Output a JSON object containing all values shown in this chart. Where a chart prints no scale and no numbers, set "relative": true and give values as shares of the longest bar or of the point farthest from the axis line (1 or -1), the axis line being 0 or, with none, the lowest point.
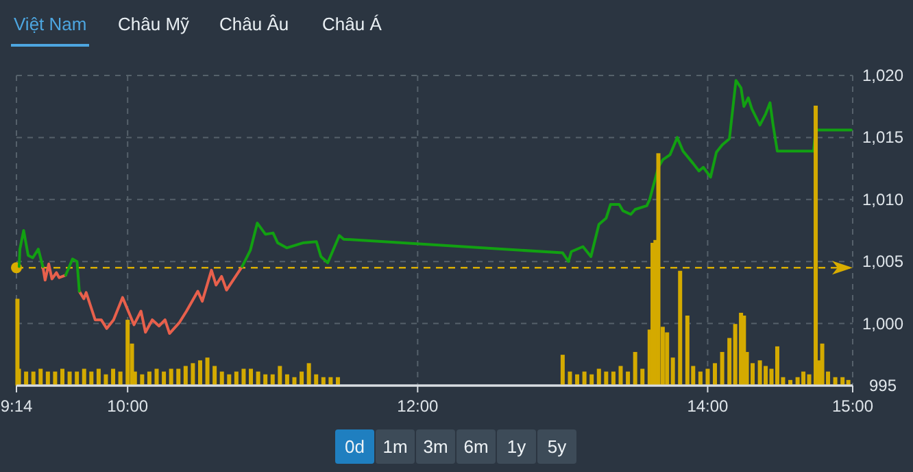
{
  "chart_data": [
    {
      "type": "other",
      "categories": [
        "Việt Nam",
        "Châu Mỹ",
        "Châu Âu",
        "Châu Á"
      ]
    },
    {
      "type": "line",
      "xlim": [
        9.2333,
        15
      ],
      "ylim": [
        995,
        1020
      ],
      "grid": true,
      "xticks": [
        {
          "value": 9.2333,
          "label": "9:14"
        },
        {
          "value": 10,
          "label": "10:00"
        },
        {
          "value": 12,
          "label": "12:00"
        },
        {
          "value": 14,
          "label": "14:00"
        },
        {
          "value": 15,
          "label": "15:00"
        }
      ],
      "yticks": [
        995,
        {
          "value": 1000,
          "label": "1,000"
        },
        {
          "value": 1005,
          "label": "1,005"
        },
        {
          "value": 1010,
          "label": "1,010"
        },
        {
          "value": 1015,
          "label": "1,015"
        },
        {
          "value": 1020,
          "label": "1,020"
        }
      ],
      "ref_lines": [
        {
          "axis": "y",
          "value": 1004.5,
          "color": "#d9ad00",
          "line_style": "dashed"
        }
      ],
      "x": [
        9.252,
        9.257,
        9.283,
        9.314,
        9.346,
        9.384,
        9.415,
        9.431,
        9.456,
        9.478,
        9.509,
        9.528,
        9.573,
        9.62,
        9.651,
        9.667,
        9.698,
        9.714,
        9.776,
        9.818,
        9.856,
        9.903,
        9.965,
        10.044,
        10.092,
        10.123,
        10.17,
        10.217,
        10.258,
        10.289,
        10.358,
        10.406,
        10.484,
        10.515,
        10.578,
        10.61,
        10.648,
        10.682,
        10.79,
        10.846,
        10.894,
        10.95,
        11.003,
        11.035,
        11.097,
        11.208,
        11.302,
        11.333,
        11.38,
        11.46,
        11.49,
        13.0,
        13.04,
        13.06,
        13.14,
        13.195,
        13.25,
        13.3,
        13.33,
        13.39,
        13.415,
        13.47,
        13.5,
        13.58,
        13.6,
        13.66,
        13.69,
        13.74,
        13.79,
        13.83,
        13.9,
        13.94,
        13.97,
        14.02,
        14.06,
        14.1,
        14.15,
        14.195,
        14.23,
        14.25,
        14.28,
        14.305,
        14.36,
        14.4,
        14.43,
        14.45,
        14.48,
        14.73,
        14.745,
        14.99
      ],
      "series": [
        {
          "color": "#e8604c",
          "values": [
            null,
            null,
            null,
            null,
            null,
            null,
            1004.6,
            1003.5,
            1004.8,
            1003.6,
            1004.1,
            1003.7,
            1003.9,
            null,
            null,
            1002.6,
            1002.0,
            1002.5,
            1000.3,
            1000.3,
            999.6,
            1000.3,
            1002.1,
            999.9,
            1001.0,
            999.3,
            1000.3,
            999.8,
            1000.3,
            999.2,
            1000.1,
            1001.0,
            1002.6,
            1001.8,
            1004.3,
            1003.1,
            1003.8,
            1002.7,
            1004.6,
            null,
            null,
            null,
            null,
            null,
            null,
            null,
            null,
            null,
            null,
            null,
            null,
            null,
            null,
            null,
            null,
            null,
            null,
            null,
            null,
            null,
            null,
            null,
            null,
            null,
            null,
            null,
            null,
            null,
            null,
            null,
            null,
            null,
            null,
            null,
            null,
            null,
            null,
            null,
            null,
            null,
            null,
            null,
            null,
            null,
            null,
            null,
            null,
            null,
            null,
            null
          ]
        },
        {
          "color": "#12a012",
          "values": [
            1004.6,
            1006.0,
            1007.5,
            1005.5,
            1005.3,
            1006.0,
            1004.6,
            null,
            null,
            null,
            null,
            null,
            1003.9,
            1005.2,
            1005.0,
            1002.6,
            null,
            null,
            null,
            null,
            null,
            null,
            null,
            null,
            null,
            null,
            null,
            null,
            null,
            null,
            null,
            null,
            null,
            null,
            null,
            null,
            null,
            null,
            1004.6,
            1005.9,
            1008.1,
            1007.2,
            1007.3,
            1006.5,
            1006.1,
            1006.5,
            1006.6,
            1005.4,
            1004.9,
            1007.1,
            1006.8,
            1005.7,
            1005.0,
            1005.8,
            1006.2,
            1005.4,
            1008.0,
            1008.5,
            1009.6,
            1009.6,
            1009.1,
            1008.8,
            1009.2,
            1009.5,
            1010.0,
            1012.6,
            1013.2,
            1013.6,
            1015.0,
            1013.9,
            1012.9,
            1012.3,
            1012.6,
            1011.8,
            1013.8,
            1014.4,
            1014.9,
            1019.6,
            1019.0,
            1017.5,
            1018.2,
            1017.3,
            1016.0,
            1016.9,
            1017.8,
            1016.1,
            1013.9,
            1013.9,
            1015.6,
            1015.6
          ]
        }
      ]
    },
    {
      "type": "bar",
      "relative": true,
      "xlim": [
        9.2333,
        15
      ],
      "color": "#d4aa00",
      "x": [
        9.24,
        9.25,
        9.3,
        9.35,
        9.4,
        9.45,
        9.5,
        9.55,
        9.6,
        9.65,
        9.7,
        9.75,
        9.8,
        9.85,
        9.9,
        9.95,
        10.0,
        10.03,
        10.05,
        10.1,
        10.15,
        10.2,
        10.25,
        10.3,
        10.35,
        10.4,
        10.45,
        10.5,
        10.55,
        10.6,
        10.65,
        10.7,
        10.75,
        10.8,
        10.85,
        10.9,
        10.95,
        11.0,
        11.05,
        11.1,
        11.15,
        11.2,
        11.25,
        11.3,
        11.35,
        11.4,
        11.45,
        13.0,
        13.05,
        13.1,
        13.15,
        13.2,
        13.25,
        13.3,
        13.35,
        13.4,
        13.45,
        13.5,
        13.55,
        13.6,
        13.62,
        13.64,
        13.66,
        13.69,
        13.72,
        13.76,
        13.81,
        13.86,
        13.9,
        13.95,
        14.0,
        14.05,
        14.1,
        14.15,
        14.19,
        14.23,
        14.25,
        14.27,
        14.31,
        14.36,
        14.4,
        14.44,
        14.48,
        14.52,
        14.57,
        14.62,
        14.66,
        14.7,
        14.745,
        14.77,
        14.79,
        14.83,
        14.88,
        14.93,
        14.97
      ],
      "values": [
        0.31,
        0.06,
        0.05,
        0.05,
        0.06,
        0.05,
        0.05,
        0.06,
        0.05,
        0.05,
        0.06,
        0.05,
        0.06,
        0.04,
        0.06,
        0.05,
        0.235,
        0.15,
        0.05,
        0.04,
        0.05,
        0.06,
        0.05,
        0.06,
        0.06,
        0.07,
        0.08,
        0.09,
        0.1,
        0.07,
        0.05,
        0.04,
        0.05,
        0.06,
        0.06,
        0.05,
        0.04,
        0.04,
        0.07,
        0.04,
        0.03,
        0.05,
        0.08,
        0.04,
        0.03,
        0.03,
        0.03,
        0.11,
        0.05,
        0.04,
        0.05,
        0.04,
        0.06,
        0.05,
        0.05,
        0.07,
        0.05,
        0.12,
        0.06,
        0.2,
        0.51,
        0.52,
        0.83,
        0.21,
        0.19,
        0.1,
        0.41,
        0.25,
        0.07,
        0.05,
        0.06,
        0.08,
        0.12,
        0.17,
        0.22,
        0.26,
        0.25,
        0.12,
        0.08,
        0.09,
        0.07,
        0.06,
        0.14,
        0.03,
        0.02,
        0.03,
        0.05,
        0.04,
        1.0,
        0.09,
        0.15,
        0.05,
        0.03,
        0.03,
        0.02
      ]
    },
    {
      "type": "other",
      "categories": [
        "0d",
        "1m",
        "3m",
        "6m",
        "1y",
        "5y"
      ]
    }
  ]
}
